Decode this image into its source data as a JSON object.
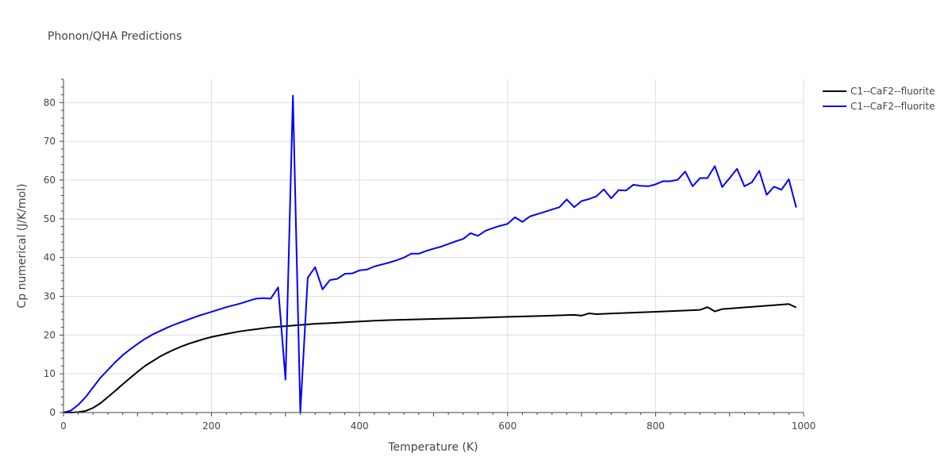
{
  "chart_data": {
    "type": "line",
    "title": "Phonon/QHA Predictions",
    "xlabel": "Temperature (K)",
    "ylabel": "Cp numerical (J/K/mol)",
    "xlim": [
      0,
      1000
    ],
    "ylim": [
      0,
      86
    ],
    "x_ticks": [
      0,
      200,
      400,
      600,
      800,
      1000
    ],
    "y_ticks": [
      0,
      10,
      20,
      30,
      40,
      50,
      60,
      70,
      80
    ],
    "grid": true,
    "legend_position": "top-right",
    "series": [
      {
        "name": "C1--CaF2--fluorite",
        "color": "#000000",
        "x": [
          0,
          10,
          20,
          30,
          40,
          50,
          60,
          70,
          80,
          90,
          100,
          110,
          120,
          130,
          140,
          150,
          160,
          170,
          180,
          190,
          200,
          220,
          240,
          260,
          280,
          300,
          320,
          340,
          360,
          380,
          400,
          420,
          440,
          460,
          480,
          500,
          550,
          600,
          650,
          690,
          700,
          710,
          720,
          800,
          860,
          870,
          880,
          890,
          980,
          990
        ],
        "y": [
          0,
          0,
          0.1,
          0.4,
          1.2,
          2.4,
          4.0,
          5.6,
          7.3,
          8.9,
          10.5,
          12.0,
          13.2,
          14.4,
          15.4,
          16.3,
          17.1,
          17.8,
          18.4,
          19.0,
          19.5,
          20.3,
          21.0,
          21.5,
          22.0,
          22.3,
          22.6,
          22.9,
          23.1,
          23.3,
          23.5,
          23.7,
          23.85,
          23.95,
          24.05,
          24.15,
          24.4,
          24.7,
          24.95,
          25.2,
          25.0,
          25.6,
          25.4,
          26.0,
          26.5,
          27.2,
          26.1,
          26.7,
          28.0,
          27.1
        ]
      },
      {
        "name": "C1--CaF2--fluorite",
        "color": "#0000ff",
        "x": [
          0,
          10,
          20,
          30,
          40,
          50,
          60,
          70,
          80,
          90,
          100,
          110,
          120,
          130,
          140,
          150,
          160,
          170,
          180,
          190,
          200,
          220,
          240,
          250,
          260,
          270,
          280,
          290,
          300,
          310,
          320,
          330,
          340,
          350,
          360,
          370,
          380,
          390,
          400,
          410,
          420,
          430,
          440,
          450,
          460,
          470,
          480,
          490,
          500,
          510,
          520,
          530,
          540,
          550,
          560,
          570,
          580,
          590,
          600,
          610,
          620,
          630,
          640,
          650,
          660,
          670,
          680,
          690,
          700,
          710,
          720,
          730,
          740,
          750,
          760,
          770,
          780,
          790,
          800,
          810,
          820,
          830,
          840,
          850,
          860,
          870,
          880,
          890,
          900,
          910,
          920,
          930,
          940,
          950,
          960,
          970,
          980,
          990
        ],
        "y": [
          0,
          0.5,
          2.0,
          4.0,
          6.5,
          9.0,
          11.0,
          13.0,
          14.8,
          16.3,
          17.7,
          19.0,
          20.1,
          21.0,
          21.9,
          22.7,
          23.4,
          24.1,
          24.8,
          25.4,
          26.0,
          27.2,
          28.2,
          28.8,
          29.4,
          29.5,
          29.4,
          32.3,
          8.5,
          81.8,
          0,
          34.8,
          37.5,
          31.8,
          34.2,
          34.5,
          35.8,
          35.9,
          36.7,
          36.9,
          37.7,
          38.2,
          38.7,
          39.3,
          40.0,
          41.0,
          41.0,
          41.7,
          42.3,
          42.8,
          43.5,
          44.2,
          44.8,
          46.3,
          45.6,
          46.9,
          47.6,
          48.2,
          48.7,
          50.4,
          49.2,
          50.6,
          51.2,
          51.8,
          52.4,
          53.0,
          55.0,
          53.0,
          54.6,
          55.1,
          55.8,
          57.6,
          55.3,
          57.4,
          57.3,
          58.8,
          58.5,
          58.4,
          58.9,
          59.7,
          59.7,
          60.1,
          62.2,
          58.4,
          60.5,
          60.5,
          63.6,
          58.2,
          60.5,
          62.9,
          58.4,
          59.4,
          62.4,
          56.2,
          58.3,
          57.5,
          60.2,
          52.9
        ]
      }
    ]
  }
}
